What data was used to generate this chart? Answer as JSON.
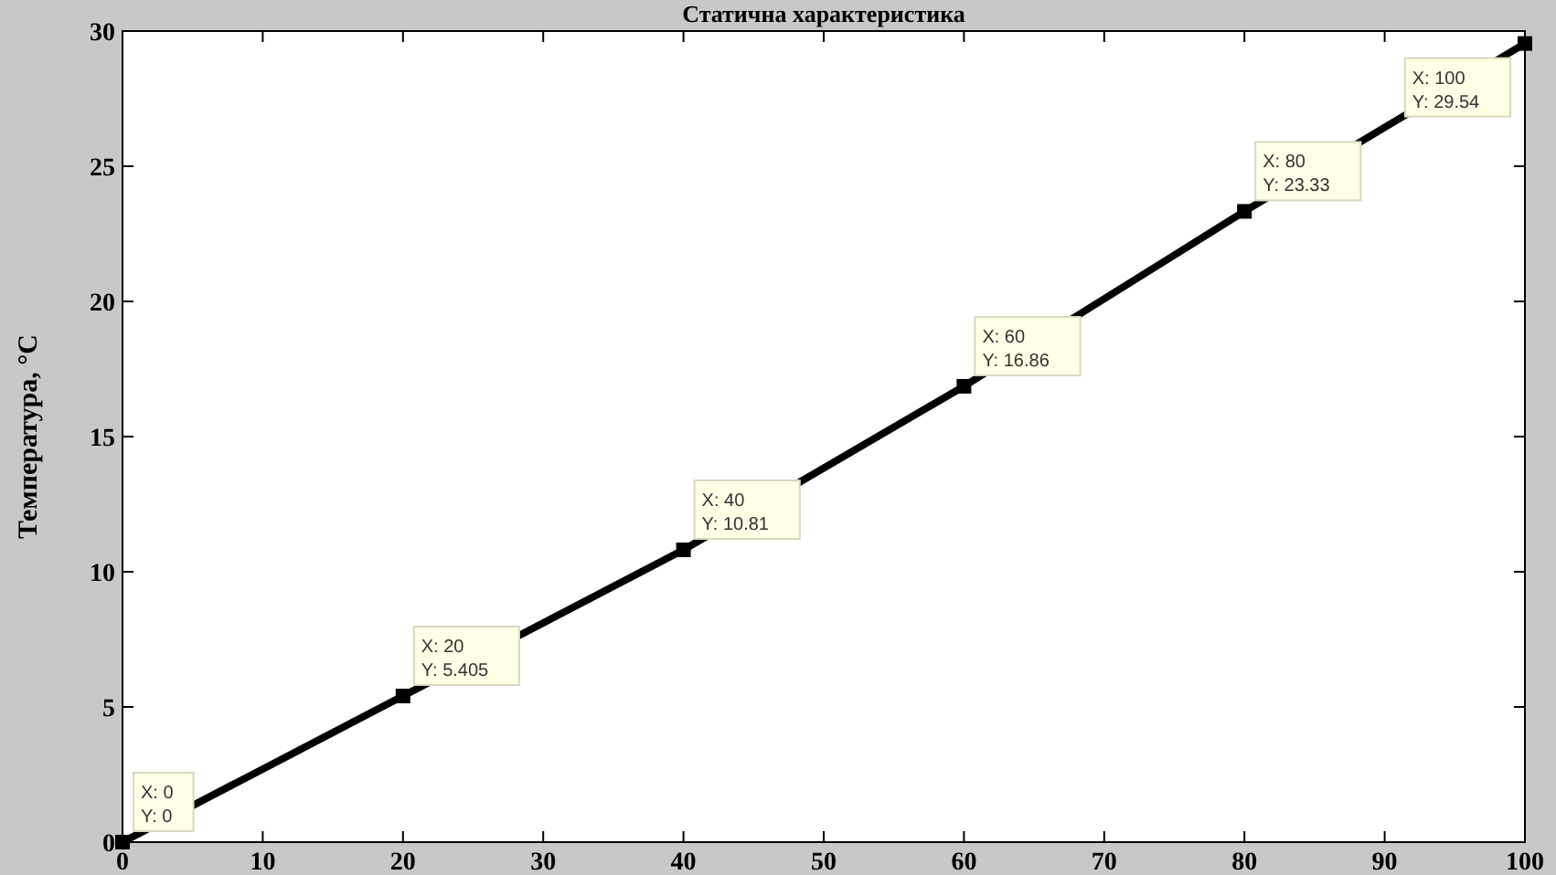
{
  "chart_data": {
    "type": "line",
    "title": "Статична характеристика",
    "ylabel": "Температура, °C",
    "x": [
      0,
      20,
      40,
      60,
      80,
      100
    ],
    "series": [
      {
        "color": "#000000",
        "values": [
          0,
          5.405,
          10.81,
          16.86,
          23.33,
          29.54
        ]
      }
    ],
    "xlim": [
      0,
      100
    ],
    "xticks": [
      0,
      10,
      20,
      30,
      40,
      50,
      60,
      70,
      80,
      90,
      100
    ],
    "ylim": [
      0,
      30
    ],
    "yticks": [
      0,
      5,
      10,
      15,
      20,
      25,
      30
    ],
    "marker": "square",
    "line_style": "solid",
    "grid": false,
    "annotations": [
      {
        "text": "X: 0\nY: 0",
        "x": 0,
        "y": 0
      },
      {
        "text": "X: 20\nY: 5.405",
        "x": 20,
        "y": 5.405
      },
      {
        "text": "X: 40\nY: 10.81",
        "x": 40,
        "y": 10.81
      },
      {
        "text": "X: 60\nY: 16.86",
        "x": 60,
        "y": 16.86
      },
      {
        "text": "X: 80\nY: 23.33",
        "x": 80,
        "y": 23.33
      },
      {
        "text": "X: 100\nY: 29.54",
        "x": 100,
        "y": 29.54
      }
    ]
  }
}
